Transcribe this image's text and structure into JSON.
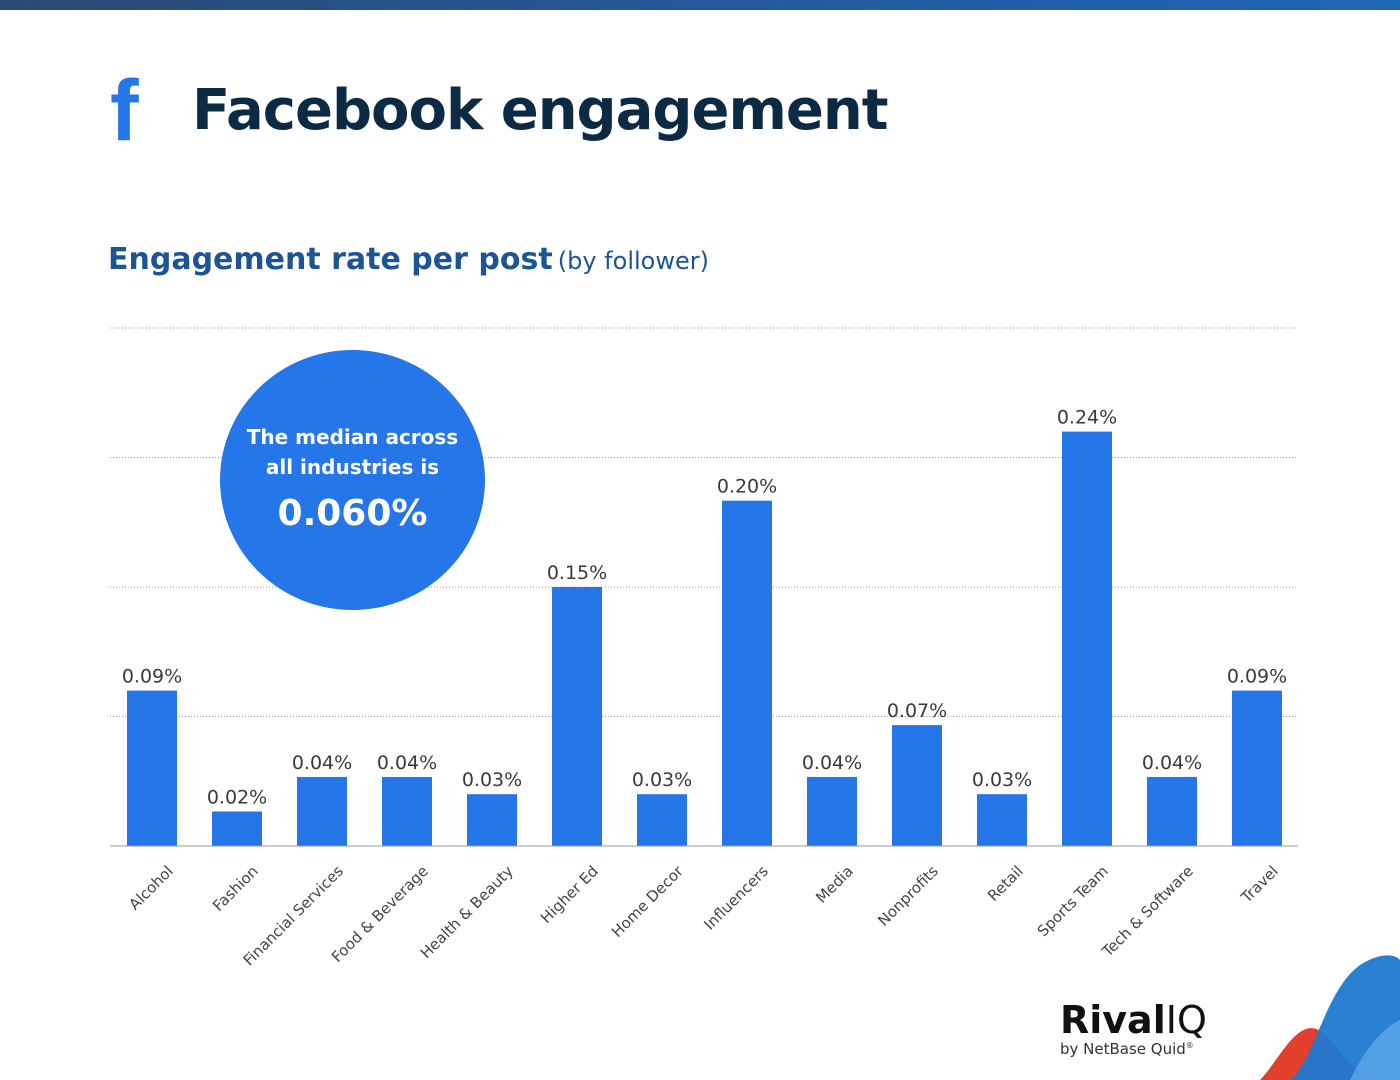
{
  "header": {
    "icon": "facebook-f-icon",
    "title": "Facebook engagement",
    "subtitle": "Engagement rate per post",
    "subtitle_note": "(by follower)"
  },
  "callout": {
    "line1": "The median across",
    "line2": "all industries is",
    "value": "0.060%"
  },
  "brand": {
    "name_bold": "Rival",
    "name_light": "IQ",
    "byline": "by NetBase Quid",
    "mark": "®"
  },
  "colors": {
    "bar": "#2576e8",
    "title": "#0c2a44",
    "subtitle": "#1c5494",
    "wave_blue": "#1f79d1",
    "wave_red": "#e2402c"
  },
  "chart_data": {
    "type": "bar",
    "title": "Engagement rate per post",
    "subtitle": "(by follower)",
    "categories": [
      "Alcohol",
      "Fashion",
      "Financial Services",
      "Food & Beverage",
      "Health & Beauty",
      "Higher Ed",
      "Home Decor",
      "Influencers",
      "Media",
      "Nonprofits",
      "Retail",
      "Sports Team",
      "Tech & Software",
      "Travel"
    ],
    "values": [
      0.09,
      0.02,
      0.04,
      0.04,
      0.03,
      0.15,
      0.03,
      0.2,
      0.04,
      0.07,
      0.03,
      0.24,
      0.04,
      0.09
    ],
    "labels": [
      "0.09%",
      "0.02%",
      "0.04%",
      "0.04%",
      "0.03%",
      "0.15%",
      "0.03%",
      "0.20%",
      "0.04%",
      "0.07%",
      "0.03%",
      "0.24%",
      "0.04%",
      "0.09%"
    ],
    "unit": "%",
    "ylim": [
      0,
      0.3
    ],
    "gridlines": [
      0.075,
      0.15,
      0.225,
      0.3
    ],
    "grid": true,
    "legend": false,
    "median": 0.06
  }
}
